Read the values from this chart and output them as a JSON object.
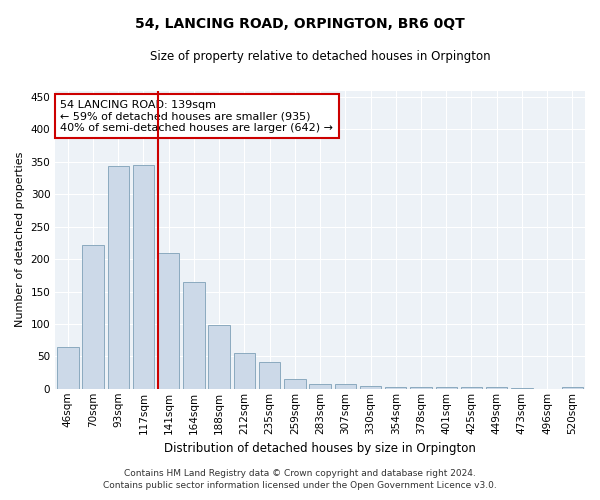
{
  "title": "54, LANCING ROAD, ORPINGTON, BR6 0QT",
  "subtitle": "Size of property relative to detached houses in Orpington",
  "xlabel": "Distribution of detached houses by size in Orpington",
  "ylabel": "Number of detached properties",
  "bar_color": "#ccd9e8",
  "bar_edge_color": "#8baabf",
  "background_color": "#edf2f7",
  "grid_color": "#ffffff",
  "annotation_line_color": "#cc0000",
  "annotation_box_color": "#cc0000",
  "annotation_line1": "54 LANCING ROAD: 139sqm",
  "annotation_line2": "← 59% of detached houses are smaller (935)",
  "annotation_line3": "40% of semi-detached houses are larger (642) →",
  "bins": [
    "46sqm",
    "70sqm",
    "93sqm",
    "117sqm",
    "141sqm",
    "164sqm",
    "188sqm",
    "212sqm",
    "235sqm",
    "259sqm",
    "283sqm",
    "307sqm",
    "330sqm",
    "354sqm",
    "378sqm",
    "401sqm",
    "425sqm",
    "449sqm",
    "473sqm",
    "496sqm",
    "520sqm"
  ],
  "values": [
    65,
    222,
    343,
    345,
    210,
    165,
    98,
    55,
    41,
    15,
    8,
    8,
    5,
    3,
    3,
    3,
    2,
    2,
    1,
    0,
    2
  ],
  "property_bin_index": 4,
  "ylim": [
    0,
    460
  ],
  "yticks": [
    0,
    50,
    100,
    150,
    200,
    250,
    300,
    350,
    400,
    450
  ],
  "footer1": "Contains HM Land Registry data © Crown copyright and database right 2024.",
  "footer2": "Contains public sector information licensed under the Open Government Licence v3.0.",
  "fig_width": 6.0,
  "fig_height": 5.0,
  "title_fontsize": 10,
  "subtitle_fontsize": 8.5,
  "ylabel_fontsize": 8,
  "xlabel_fontsize": 8.5,
  "tick_fontsize": 7.5,
  "footer_fontsize": 6.5
}
